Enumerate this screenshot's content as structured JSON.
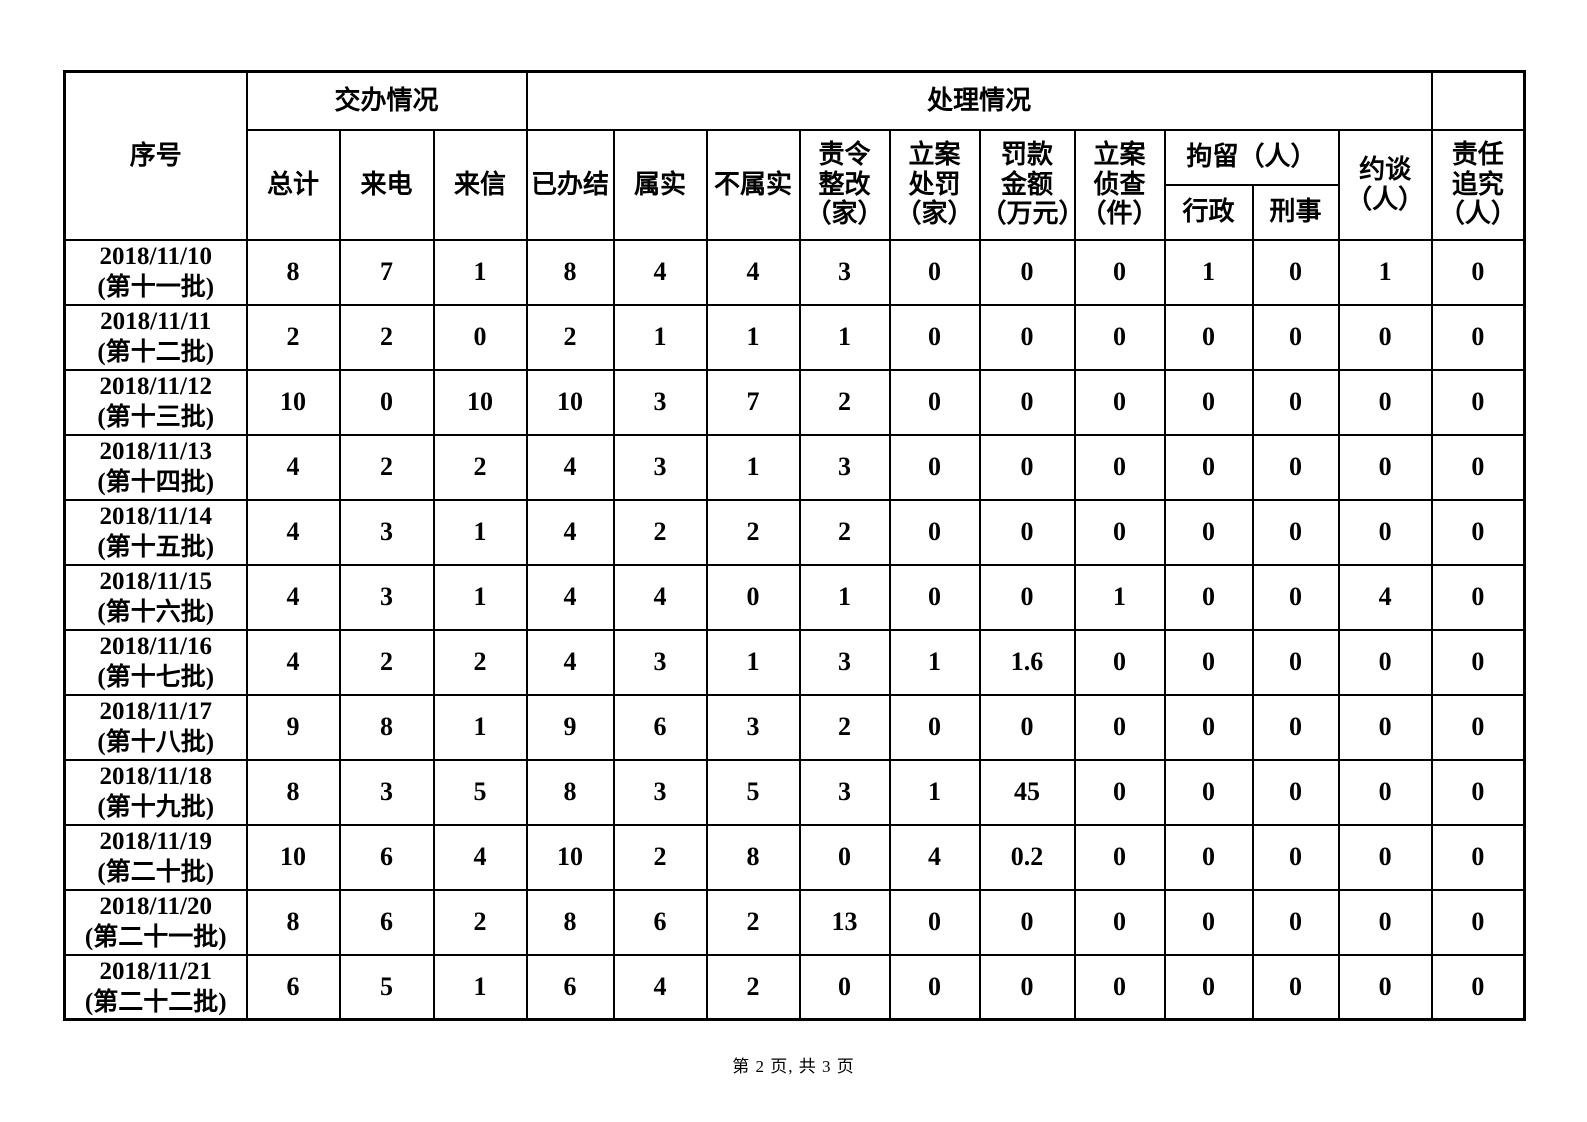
{
  "header": {
    "serial": "序号",
    "group_assign": "交办情况",
    "group_handle": "处理情况",
    "cols": {
      "total": "总计",
      "calls": "来电",
      "letters": "来信",
      "completed": "已办结",
      "verified": "属实",
      "not_verified": "不属实",
      "rectify": "责令\n整改\n（家）",
      "punish": "立案\n处罚\n（家）",
      "fine": "罚款\n金额\n（万元）",
      "investigate": "立案\n侦查\n（件）",
      "detention": "拘留（人）",
      "admin": "行政",
      "criminal": "刑事",
      "interview": "约谈\n（人）",
      "accountability": "责任\n追究\n（人）"
    }
  },
  "rows": [
    {
      "date": "2018/11/10",
      "batch": "(第十一批)",
      "values": [
        "8",
        "7",
        "1",
        "8",
        "4",
        "4",
        "3",
        "0",
        "0",
        "0",
        "1",
        "0",
        "1",
        "0"
      ]
    },
    {
      "date": "2018/11/11",
      "batch": "(第十二批)",
      "values": [
        "2",
        "2",
        "0",
        "2",
        "1",
        "1",
        "1",
        "0",
        "0",
        "0",
        "0",
        "0",
        "0",
        "0"
      ]
    },
    {
      "date": "2018/11/12",
      "batch": "(第十三批)",
      "values": [
        "10",
        "0",
        "10",
        "10",
        "3",
        "7",
        "2",
        "0",
        "0",
        "0",
        "0",
        "0",
        "0",
        "0"
      ]
    },
    {
      "date": "2018/11/13",
      "batch": "(第十四批)",
      "values": [
        "4",
        "2",
        "2",
        "4",
        "3",
        "1",
        "3",
        "0",
        "0",
        "0",
        "0",
        "0",
        "0",
        "0"
      ]
    },
    {
      "date": "2018/11/14",
      "batch": "(第十五批)",
      "values": [
        "4",
        "3",
        "1",
        "4",
        "2",
        "2",
        "2",
        "0",
        "0",
        "0",
        "0",
        "0",
        "0",
        "0"
      ]
    },
    {
      "date": "2018/11/15",
      "batch": "(第十六批)",
      "values": [
        "4",
        "3",
        "1",
        "4",
        "4",
        "0",
        "1",
        "0",
        "0",
        "1",
        "0",
        "0",
        "4",
        "0"
      ]
    },
    {
      "date": "2018/11/16",
      "batch": "(第十七批)",
      "values": [
        "4",
        "2",
        "2",
        "4",
        "3",
        "1",
        "3",
        "1",
        "1.6",
        "0",
        "0",
        "0",
        "0",
        "0"
      ]
    },
    {
      "date": "2018/11/17",
      "batch": "(第十八批)",
      "values": [
        "9",
        "8",
        "1",
        "9",
        "6",
        "3",
        "2",
        "0",
        "0",
        "0",
        "0",
        "0",
        "0",
        "0"
      ]
    },
    {
      "date": "2018/11/18",
      "batch": "(第十九批)",
      "values": [
        "8",
        "3",
        "5",
        "8",
        "3",
        "5",
        "3",
        "1",
        "45",
        "0",
        "0",
        "0",
        "0",
        "0"
      ]
    },
    {
      "date": "2018/11/19",
      "batch": "(第二十批)",
      "values": [
        "10",
        "6",
        "4",
        "10",
        "2",
        "8",
        "0",
        "4",
        "0.2",
        "0",
        "0",
        "0",
        "0",
        "0"
      ]
    },
    {
      "date": "2018/11/20",
      "batch": "(第二十一批)",
      "values": [
        "8",
        "6",
        "2",
        "8",
        "6",
        "2",
        "13",
        "0",
        "0",
        "0",
        "0",
        "0",
        "0",
        "0"
      ]
    },
    {
      "date": "2018/11/21",
      "batch": "(第二十二批)",
      "values": [
        "6",
        "5",
        "1",
        "6",
        "4",
        "2",
        "0",
        "0",
        "0",
        "0",
        "0",
        "0",
        "0",
        "0"
      ]
    }
  ],
  "footer": {
    "page_text": "第 2 页, 共 3 页"
  }
}
